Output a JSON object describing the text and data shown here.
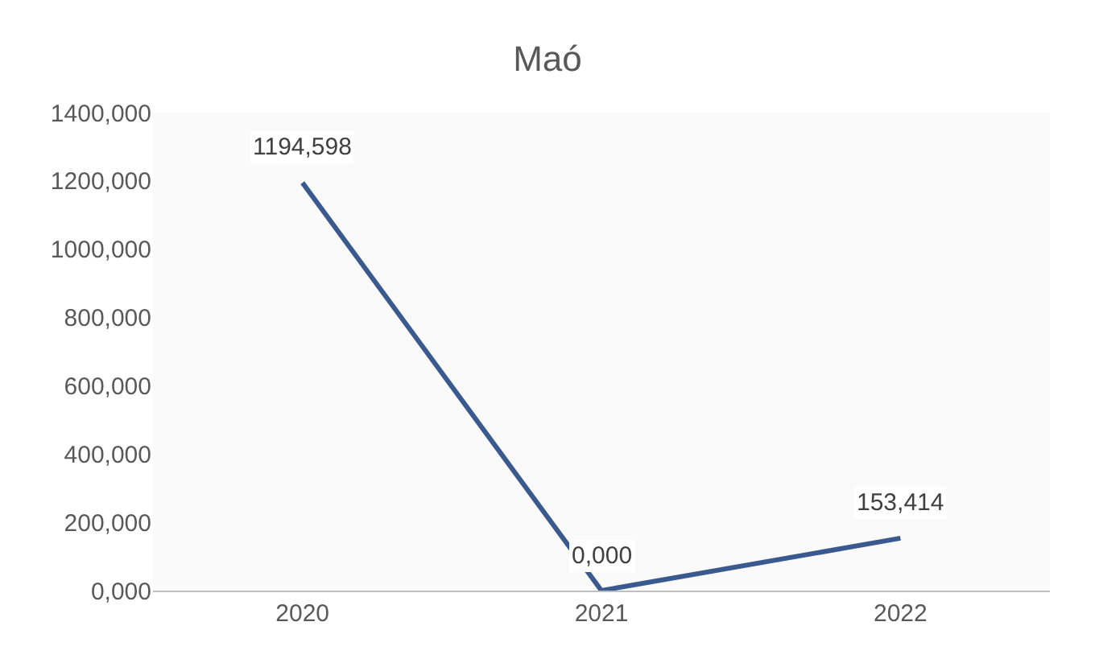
{
  "chart_data": {
    "type": "line",
    "title": "Maó",
    "categories": [
      "2020",
      "2021",
      "2022"
    ],
    "series": [
      {
        "color": "#3a5a8f",
        "values": [
          1194.598,
          0,
          153.414
        ],
        "value_labels": [
          "1194,598",
          "0,000",
          "153,414"
        ]
      }
    ],
    "ylim": [
      0,
      1400
    ],
    "yticks": [
      {
        "value": 0,
        "label": "0,000"
      },
      {
        "value": 200,
        "label": "200,000"
      },
      {
        "value": 400,
        "label": "400,000"
      },
      {
        "value": 600,
        "label": "600,000"
      },
      {
        "value": 800,
        "label": "800,000"
      },
      {
        "value": 1000,
        "label": "1000,000"
      },
      {
        "value": 1200,
        "label": "1200,000"
      },
      {
        "value": 1400,
        "label": "1400,000"
      }
    ],
    "marker": "none",
    "line_style": "solid"
  }
}
